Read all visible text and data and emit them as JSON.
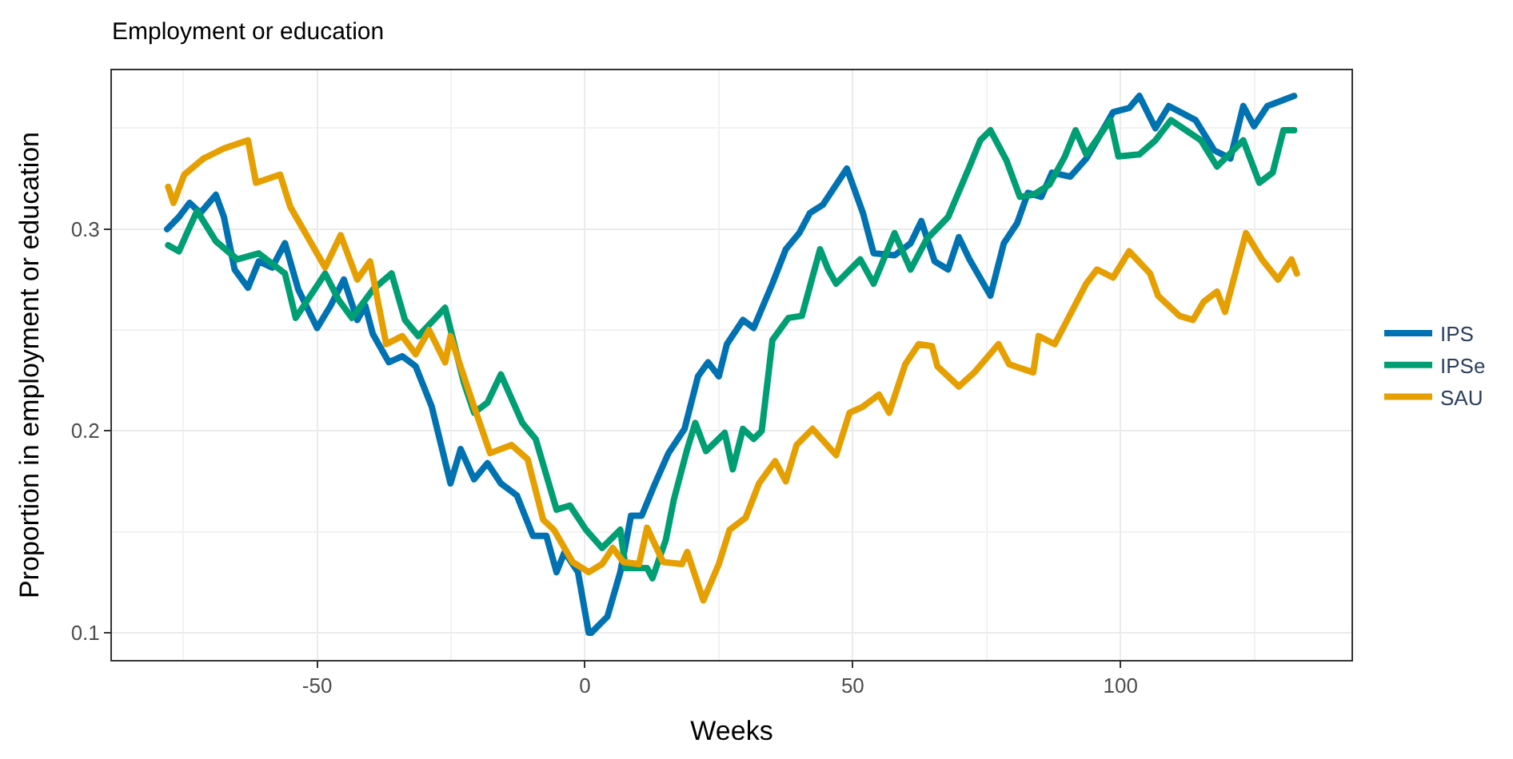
{
  "chart_data": {
    "type": "line",
    "title": "Employment or education",
    "xlabel": "Weeks",
    "ylabel": "Proportion in employment or education",
    "xlim": [
      -88.3,
      143.1
    ],
    "ylim": [
      0.0865,
      0.3787
    ],
    "xticks": [
      {
        "value": -75,
        "label": null
      },
      -50,
      {
        "value": -25,
        "label": null
      },
      0,
      {
        "value": 25,
        "label": null
      },
      50,
      {
        "value": 75,
        "label": null
      },
      100,
      {
        "value": 125,
        "label": null
      }
    ],
    "yticks": [
      0.1,
      {
        "value": 0.15,
        "label": null
      },
      0.2,
      {
        "value": 0.25,
        "label": null
      },
      0.3,
      {
        "value": 0.35,
        "label": null
      }
    ],
    "grid": true,
    "legend": "right",
    "line_style": "solid",
    "marker": "none",
    "series": [
      {
        "name": "IPS",
        "color": "#0072b2",
        "x": [
          -78,
          -75.8,
          -73.8,
          -71.8,
          -68.9,
          -67.4,
          -65.4,
          -62.9,
          -60.9,
          -58.4,
          -56,
          -53.5,
          -50,
          -47.5,
          -45,
          -42.5,
          -41,
          -39.6,
          -36.6,
          -34.1,
          -31.6,
          -28.6,
          -25.1,
          -23.2,
          -20.7,
          -18.2,
          -15.7,
          -12.7,
          -9.7,
          -7.2,
          -5.3,
          -3.8,
          -1.3,
          0.7,
          1.2,
          4.2,
          6.6,
          8.6,
          10.6,
          13.1,
          15.6,
          18.6,
          21.1,
          23,
          25,
          26.5,
          29.5,
          31.5,
          35,
          37.5,
          40,
          42,
          44.4,
          48.9,
          51.9,
          53.9,
          57.8,
          60.8,
          62.8,
          65.3,
          67.8,
          69.8,
          71.8,
          75.7,
          78.2,
          80.7,
          82.7,
          85.2,
          87.2,
          90.6,
          93.6,
          95.6,
          98.6,
          101.6,
          103.5,
          106.5,
          109,
          114,
          117.5,
          120.5,
          122.9,
          124.9,
          127.4,
          132.4
        ],
        "values": [
          0.3,
          0.306,
          0.313,
          0.308,
          0.317,
          0.306,
          0.28,
          0.271,
          0.284,
          0.281,
          0.293,
          0.27,
          0.251,
          0.262,
          0.275,
          0.255,
          0.262,
          0.248,
          0.234,
          0.237,
          0.232,
          0.212,
          0.174,
          0.191,
          0.176,
          0.184,
          0.174,
          0.168,
          0.148,
          0.148,
          0.13,
          0.14,
          0.13,
          0.1,
          0.1,
          0.108,
          0.13,
          0.158,
          0.158,
          0.174,
          0.189,
          0.201,
          0.227,
          0.234,
          0.227,
          0.243,
          0.255,
          0.251,
          0.273,
          0.29,
          0.298,
          0.308,
          0.312,
          0.33,
          0.308,
          0.288,
          0.287,
          0.293,
          0.304,
          0.284,
          0.28,
          0.296,
          0.285,
          0.267,
          0.293,
          0.303,
          0.318,
          0.316,
          0.328,
          0.326,
          0.335,
          0.344,
          0.358,
          0.36,
          0.366,
          0.35,
          0.361,
          0.354,
          0.339,
          0.335,
          0.361,
          0.351,
          0.361,
          0.366
        ]
      },
      {
        "name": "IPSe",
        "color": "#009e73",
        "x": [
          -77.8,
          -75.8,
          -74.3,
          -72.4,
          -68.9,
          -64.9,
          -60.9,
          -56,
          -54,
          -48.5,
          -46,
          -43.5,
          -39.6,
          -36.1,
          -33.6,
          -31.1,
          -26.1,
          -22.6,
          -20.7,
          -18.2,
          -15.7,
          -11.7,
          -9.2,
          -5.3,
          -2.8,
          0.2,
          3.2,
          6.6,
          7.6,
          11.6,
          12.6,
          15.1,
          16.6,
          19.1,
          20.6,
          22.6,
          26.1,
          27.6,
          29.5,
          31.5,
          33,
          35,
          38,
          40.5,
          43.9,
          45.4,
          46.9,
          51.4,
          53.9,
          57.8,
          60.8,
          63.8,
          67.8,
          71.8,
          73.8,
          75.7,
          78.7,
          81.2,
          83.7,
          86.7,
          89.6,
          91.6,
          93.6,
          98.1,
          99.6,
          103.5,
          106.5,
          109.4,
          115,
          118,
          122.9,
          125.9,
          128.4,
          130.4,
          132.4
        ],
        "values": [
          0.292,
          0.289,
          0.298,
          0.309,
          0.294,
          0.285,
          0.288,
          0.278,
          0.256,
          0.278,
          0.265,
          0.256,
          0.27,
          0.278,
          0.255,
          0.247,
          0.261,
          0.224,
          0.209,
          0.214,
          0.228,
          0.204,
          0.196,
          0.161,
          0.163,
          0.151,
          0.142,
          0.151,
          0.132,
          0.132,
          0.127,
          0.146,
          0.166,
          0.191,
          0.204,
          0.19,
          0.199,
          0.181,
          0.201,
          0.196,
          0.2,
          0.245,
          0.256,
          0.257,
          0.29,
          0.28,
          0.273,
          0.285,
          0.273,
          0.298,
          0.28,
          0.295,
          0.306,
          0.331,
          0.344,
          0.349,
          0.334,
          0.316,
          0.317,
          0.322,
          0.336,
          0.349,
          0.337,
          0.354,
          0.336,
          0.337,
          0.344,
          0.354,
          0.344,
          0.331,
          0.344,
          0.323,
          0.328,
          0.349,
          0.349
        ]
      },
      {
        "name": "SAU",
        "color": "#e69f00",
        "x": [
          -77.8,
          -76.8,
          -74.8,
          -71.2,
          -67.4,
          -62.9,
          -61.4,
          -56.9,
          -55,
          -48.5,
          -45.6,
          -42.5,
          -40.1,
          -37.1,
          -34.1,
          -31.6,
          -29.1,
          -26.1,
          -25.1,
          -21.6,
          -17.7,
          -13.7,
          -10.7,
          -7.8,
          -5.8,
          -2.3,
          0.7,
          3.2,
          5.2,
          7.2,
          10.1,
          11.6,
          14.6,
          18.1,
          19.1,
          22.1,
          25,
          27,
          30,
          32.5,
          35.5,
          37.5,
          39.5,
          42.5,
          46.9,
          49.4,
          51.9,
          54.9,
          56.8,
          59.8,
          62.3,
          64.8,
          65.8,
          69.8,
          72.7,
          77.2,
          79.2,
          83.7,
          84.7,
          87.7,
          93.6,
          95.6,
          98.6,
          101.6,
          105.5,
          107,
          111,
          113.5,
          115.5,
          118,
          119.5,
          123.4,
          126.4,
          129.4,
          131.9,
          132.9
        ],
        "values": [
          0.321,
          0.313,
          0.327,
          0.335,
          0.34,
          0.344,
          0.323,
          0.327,
          0.311,
          0.281,
          0.297,
          0.275,
          0.284,
          0.243,
          0.247,
          0.238,
          0.25,
          0.234,
          0.247,
          0.219,
          0.189,
          0.193,
          0.186,
          0.156,
          0.151,
          0.135,
          0.13,
          0.134,
          0.142,
          0.135,
          0.134,
          0.152,
          0.135,
          0.134,
          0.14,
          0.116,
          0.134,
          0.151,
          0.157,
          0.174,
          0.185,
          0.175,
          0.193,
          0.201,
          0.188,
          0.209,
          0.212,
          0.218,
          0.209,
          0.233,
          0.243,
          0.242,
          0.232,
          0.222,
          0.229,
          0.243,
          0.233,
          0.229,
          0.247,
          0.243,
          0.273,
          0.28,
          0.276,
          0.289,
          0.278,
          0.267,
          0.257,
          0.255,
          0.264,
          0.269,
          0.259,
          0.298,
          0.285,
          0.275,
          0.285,
          0.278
        ]
      }
    ]
  }
}
